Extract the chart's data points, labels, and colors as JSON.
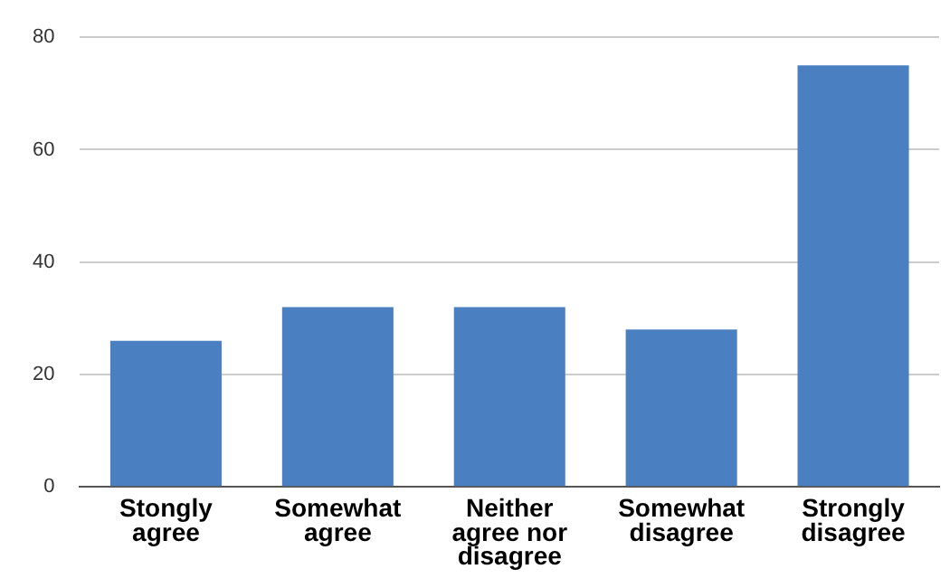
{
  "chart_data": {
    "type": "bar",
    "categories": [
      "Stongly agree",
      "Somewhat agree",
      "Neither agree nor disagree",
      "Somewhat disagree",
      "Strongly disagree"
    ],
    "values": [
      26,
      32,
      32,
      28,
      75
    ],
    "color": "#4a7fc1",
    "ylim": [
      0,
      80
    ],
    "yticks": [
      0,
      20,
      40,
      60,
      80
    ],
    "grid": "y",
    "legend": false
  }
}
